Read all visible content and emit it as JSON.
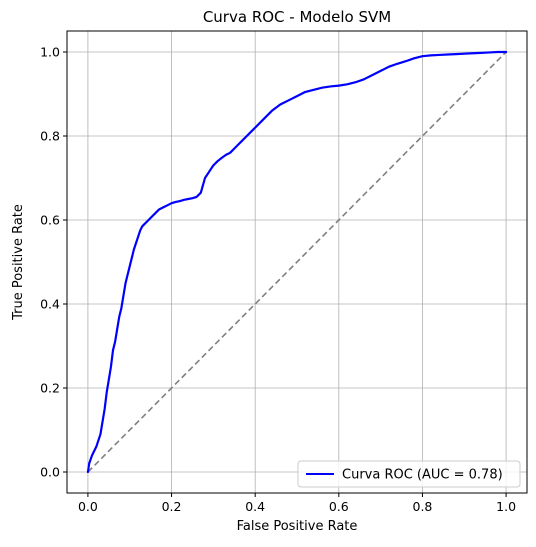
{
  "chart_data": {
    "type": "line",
    "title": "Curva ROC - Modelo SVM",
    "xlabel": "False Positive Rate",
    "ylabel": "True Positive Rate",
    "xlim": [
      -0.05,
      1.05
    ],
    "ylim": [
      -0.05,
      1.05
    ],
    "xticks": [
      "0.0",
      "0.2",
      "0.4",
      "0.6",
      "0.8",
      "1.0"
    ],
    "yticks": [
      "0.0",
      "0.2",
      "0.4",
      "0.6",
      "0.8",
      "1.0"
    ],
    "grid": true,
    "legend_position": "lower-right",
    "series": [
      {
        "name": "Curva ROC (AUC = 0.78)",
        "color": "#0000ff",
        "style": "solid",
        "x": [
          0.0,
          0.003,
          0.01,
          0.02,
          0.03,
          0.04,
          0.045,
          0.05,
          0.055,
          0.06,
          0.065,
          0.07,
          0.075,
          0.08,
          0.085,
          0.09,
          0.095,
          0.1,
          0.105,
          0.11,
          0.115,
          0.12,
          0.125,
          0.13,
          0.135,
          0.14,
          0.145,
          0.15,
          0.16,
          0.17,
          0.18,
          0.19,
          0.2,
          0.21,
          0.22,
          0.23,
          0.24,
          0.25,
          0.26,
          0.27,
          0.28,
          0.29,
          0.3,
          0.31,
          0.32,
          0.33,
          0.34,
          0.35,
          0.36,
          0.37,
          0.38,
          0.39,
          0.4,
          0.42,
          0.44,
          0.46,
          0.48,
          0.5,
          0.52,
          0.54,
          0.56,
          0.58,
          0.6,
          0.62,
          0.64,
          0.66,
          0.68,
          0.7,
          0.72,
          0.74,
          0.76,
          0.78,
          0.8,
          0.82,
          0.84,
          0.86,
          0.88,
          0.9,
          0.92,
          0.94,
          0.96,
          0.98,
          1.0
        ],
        "y": [
          0.0,
          0.02,
          0.04,
          0.06,
          0.09,
          0.15,
          0.19,
          0.22,
          0.25,
          0.29,
          0.31,
          0.34,
          0.37,
          0.39,
          0.42,
          0.45,
          0.47,
          0.49,
          0.51,
          0.53,
          0.545,
          0.56,
          0.575,
          0.585,
          0.59,
          0.595,
          0.6,
          0.605,
          0.615,
          0.625,
          0.63,
          0.635,
          0.64,
          0.643,
          0.645,
          0.648,
          0.65,
          0.652,
          0.655,
          0.665,
          0.7,
          0.715,
          0.73,
          0.74,
          0.748,
          0.755,
          0.76,
          0.77,
          0.78,
          0.79,
          0.8,
          0.81,
          0.82,
          0.84,
          0.86,
          0.875,
          0.885,
          0.895,
          0.905,
          0.91,
          0.915,
          0.918,
          0.92,
          0.923,
          0.928,
          0.935,
          0.945,
          0.955,
          0.965,
          0.972,
          0.978,
          0.985,
          0.99,
          0.992,
          0.993,
          0.994,
          0.995,
          0.996,
          0.997,
          0.998,
          0.999,
          1.0,
          1.0
        ]
      }
    ],
    "reference_line": {
      "x": [
        0.0,
        1.0
      ],
      "y": [
        0.0,
        1.0
      ],
      "color": "#808080",
      "style": "dashed"
    }
  }
}
